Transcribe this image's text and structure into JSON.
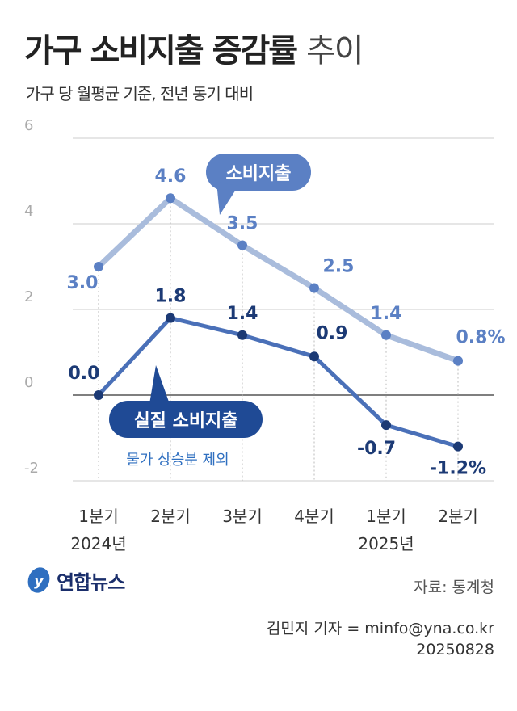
{
  "title": {
    "bold": "가구 소비지출 증감률",
    "light": "추이"
  },
  "subtitle": "가구 당 월평균 기준, 전년 동기 대비",
  "source": "자료: 통계청",
  "credit": "김민지 기자 = minfo@yna.co.kr",
  "date": "20250828",
  "logo": "연합뉴스",
  "chart_data": {
    "type": "line",
    "categories": [
      "1분기",
      "2분기",
      "3분기",
      "4분기",
      "1분기",
      "2분기"
    ],
    "year_labels": [
      {
        "index": 0,
        "label": "2024년"
      },
      {
        "index": 4,
        "label": "2025년"
      }
    ],
    "ylim": [
      -2,
      6
    ],
    "yticks": [
      6,
      4,
      2,
      0,
      -2
    ],
    "unit": "%",
    "series": [
      {
        "name": "소비지출",
        "values": [
          3.0,
          4.6,
          3.5,
          2.5,
          1.4,
          0.8
        ],
        "line_color": "#a9bcdc",
        "point_color": "#5b80c4",
        "label_color": "#5b80c4"
      },
      {
        "name": "실질 소비지출",
        "note": "물가 상승분 제외",
        "values": [
          0.0,
          1.8,
          1.4,
          0.9,
          -0.7,
          -1.2
        ],
        "line_color": "#4a70b8",
        "point_color": "#1c3a75",
        "label_color": "#1c3a75"
      }
    ]
  }
}
